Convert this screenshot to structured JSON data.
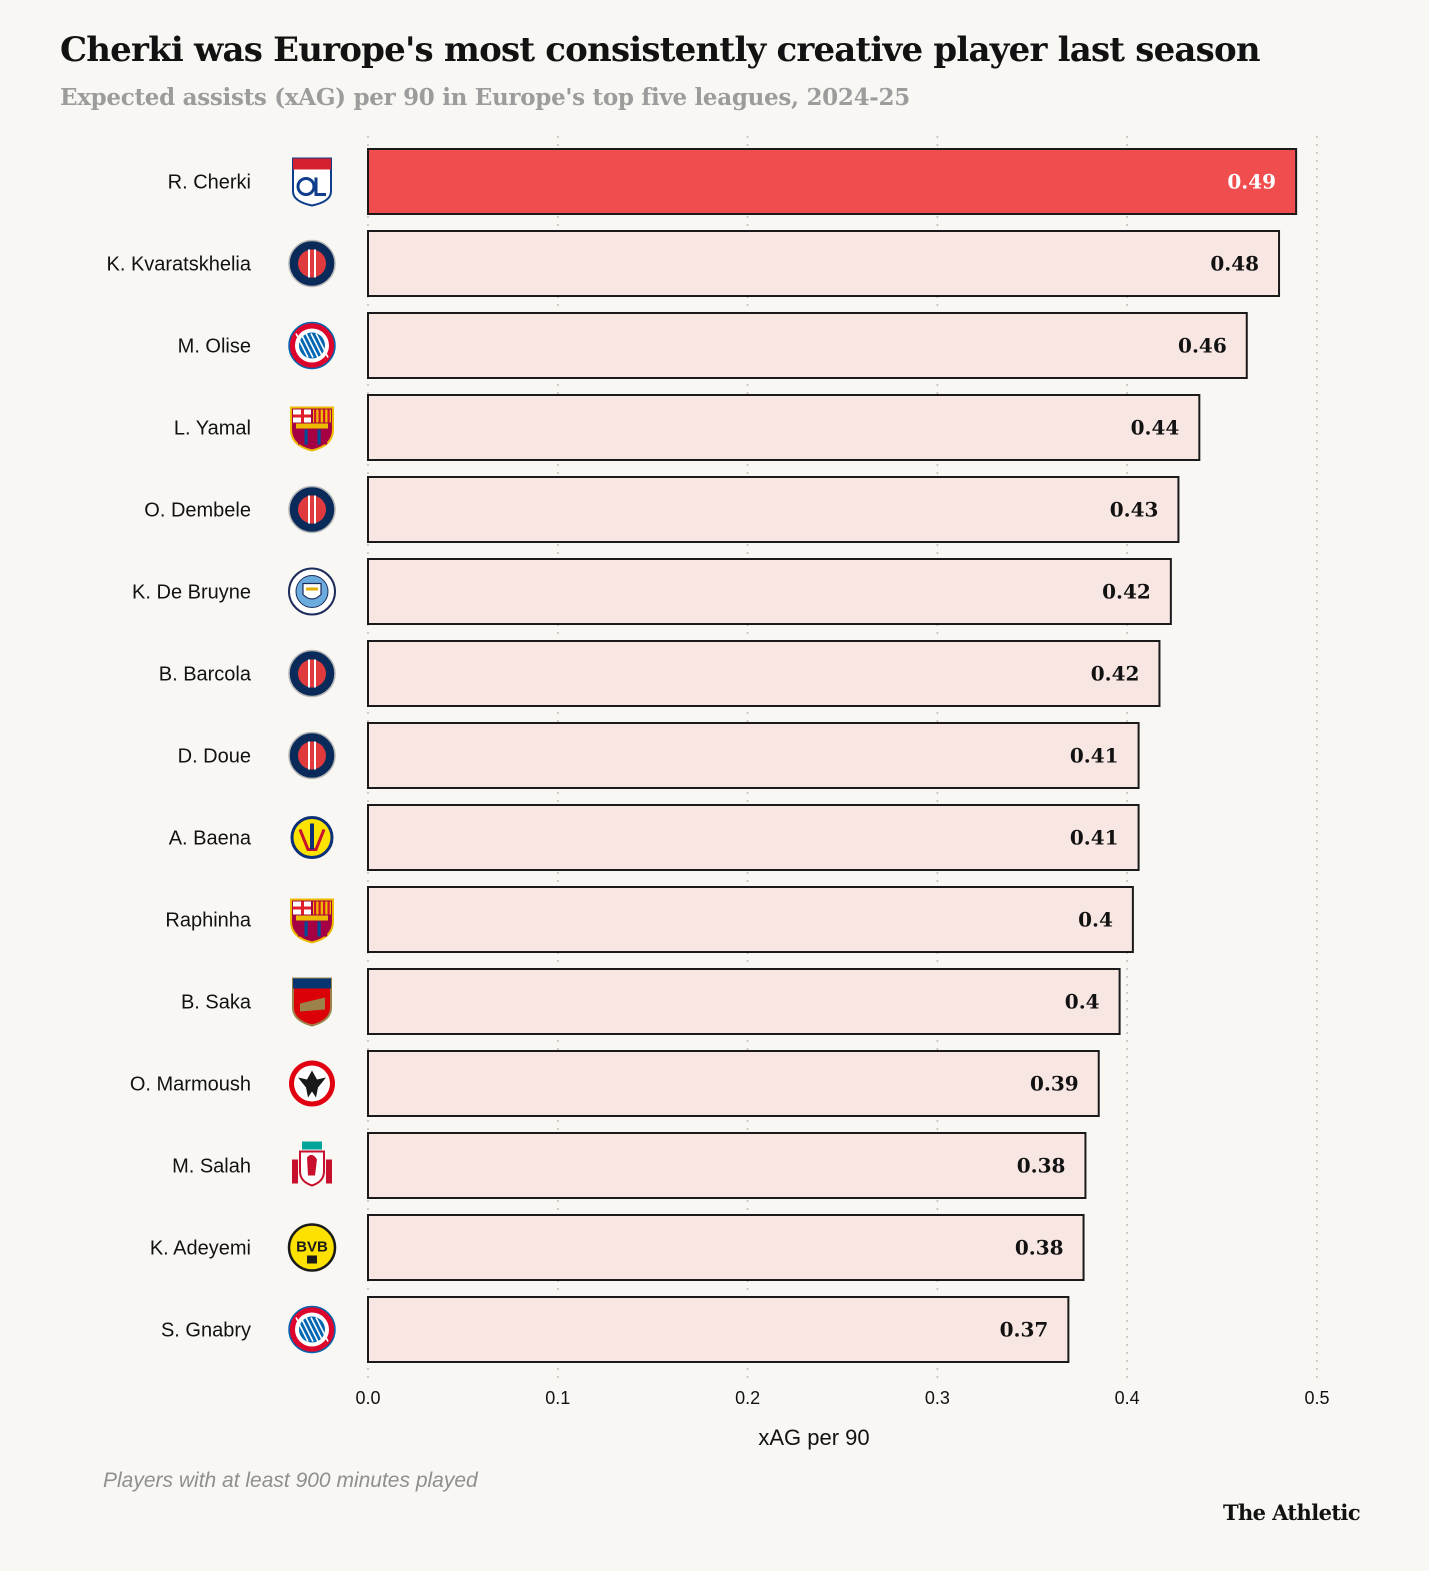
{
  "chart_data": {
    "type": "bar",
    "orientation": "horizontal",
    "title": "Cherki was Europe's most consistently creative player last season",
    "subtitle": "Expected assists (xAG) per 90 in Europe's top five leagues, 2024-25",
    "xlabel": "xAG per 90",
    "xlim": [
      0,
      0.5
    ],
    "xticks": [
      0.0,
      0.1,
      0.2,
      0.3,
      0.4,
      0.5
    ],
    "xtick_labels": [
      "0.0",
      "0.1",
      "0.2",
      "0.3",
      "0.4",
      "0.5"
    ],
    "grid": "vertical dotted",
    "highlight_color": "#f04e4e",
    "bar_color": "#f7e6e2",
    "categories": [
      "R. Cherki",
      "K. Kvaratskhelia",
      "M. Olise",
      "L. Yamal",
      "O. Dembele",
      "K. De Bruyne",
      "B. Barcola",
      "D. Doue",
      "A. Baena",
      "Raphinha",
      "B. Saka",
      "O. Marmoush",
      "M. Salah",
      "K. Adeyemi",
      "S. Gnabry"
    ],
    "values": [
      0.489,
      0.48,
      0.463,
      0.438,
      0.427,
      0.423,
      0.417,
      0.406,
      0.406,
      0.403,
      0.396,
      0.385,
      0.378,
      0.377,
      0.369
    ],
    "value_labels": [
      "0.49",
      "0.48",
      "0.46",
      "0.44",
      "0.43",
      "0.42",
      "0.42",
      "0.41",
      "0.41",
      "0.4",
      "0.4",
      "0.39",
      "0.38",
      "0.38",
      "0.37"
    ],
    "club_badges": [
      "lyon-badge-icon",
      "psg-badge-icon",
      "bayern-badge-icon",
      "barcelona-badge-icon",
      "psg-badge-icon",
      "man-city-badge-icon",
      "psg-badge-icon",
      "psg-badge-icon",
      "villarreal-badge-icon",
      "barcelona-badge-icon",
      "arsenal-badge-icon",
      "frankfurt-badge-icon",
      "liverpool-badge-icon",
      "dortmund-badge-icon",
      "bayern-badge-icon"
    ],
    "highlighted": "R. Cherki"
  },
  "note": "Players with at least 900 minutes played",
  "source_brand": "The Athletic"
}
